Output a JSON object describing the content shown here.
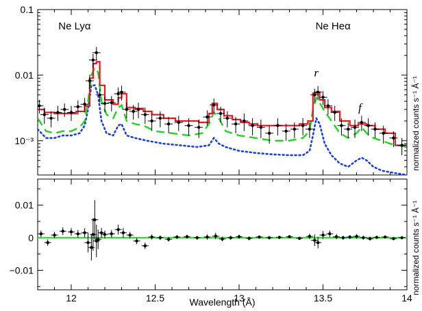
{
  "chart_data": [
    {
      "panel": "top",
      "type": "line",
      "yscale": "log",
      "xlim": [
        11.8,
        14.0
      ],
      "ylim": [
        0.0003,
        0.1
      ],
      "y_ticks": [
        0.001,
        0.01,
        0.1
      ],
      "y_tick_labels": [
        "10⁻³",
        "0.01",
        "0.1"
      ],
      "ylabel": "normalized counts s⁻¹ Å⁻¹",
      "annotations": [
        {
          "text": "Ne Lyα",
          "x": 12.02,
          "y": 0.05,
          "style": "normal"
        },
        {
          "text": "Ne Heα",
          "x": 13.56,
          "y": 0.05,
          "style": "normal"
        },
        {
          "text": "r",
          "x": 13.46,
          "y": 0.0095,
          "style": "italic"
        },
        {
          "text": "f",
          "x": 13.72,
          "y": 0.0028,
          "style": "italic"
        }
      ],
      "series": [
        {
          "style": "data-points",
          "color": "#000000",
          "x": [
            11.81,
            11.84,
            11.88,
            11.92,
            11.96,
            12.0,
            12.04,
            12.08,
            12.11,
            12.13,
            12.15,
            12.17,
            12.2,
            12.24,
            12.28,
            12.3,
            12.33,
            12.37,
            12.4,
            12.44,
            12.48,
            12.53,
            12.58,
            12.64,
            12.7,
            12.76,
            12.81,
            12.85,
            12.89,
            12.93,
            12.98,
            13.03,
            13.08,
            13.13,
            13.18,
            13.23,
            13.28,
            13.33,
            13.38,
            13.42,
            13.45,
            13.47,
            13.5,
            13.53,
            13.57,
            13.61,
            13.65,
            13.69,
            13.73,
            13.77,
            13.81,
            13.86,
            13.92,
            13.97
          ],
          "y": [
            0.0034,
            0.0025,
            0.0022,
            0.0027,
            0.003,
            0.0027,
            0.0033,
            0.0036,
            0.0082,
            0.017,
            0.022,
            0.005,
            0.0037,
            0.0038,
            0.0052,
            0.0055,
            0.003,
            0.0028,
            0.003,
            0.0025,
            0.002,
            0.0022,
            0.0018,
            0.0019,
            0.0017,
            0.0016,
            0.0023,
            0.0035,
            0.0026,
            0.0022,
            0.0018,
            0.002,
            0.0017,
            0.0016,
            0.0013,
            0.0017,
            0.0014,
            0.0015,
            0.0017,
            0.0015,
            0.005,
            0.0055,
            0.0046,
            0.0034,
            0.0027,
            0.0017,
            0.0015,
            0.0016,
            0.0019,
            0.0017,
            0.0015,
            0.0013,
            0.0011,
            0.00085
          ],
          "yerr": [
            0.0008,
            0.0007,
            0.0006,
            0.0007,
            0.0007,
            0.0007,
            0.0008,
            0.0009,
            0.002,
            0.004,
            0.005,
            0.0012,
            0.001,
            0.001,
            0.0013,
            0.0014,
            0.0008,
            0.0007,
            0.0008,
            0.0007,
            0.0006,
            0.0006,
            0.0005,
            0.0005,
            0.0005,
            0.0005,
            0.0006,
            0.0009,
            0.0007,
            0.0006,
            0.0005,
            0.0006,
            0.0005,
            0.0005,
            0.0004,
            0.0005,
            0.0004,
            0.0004,
            0.0005,
            0.0004,
            0.0012,
            0.0013,
            0.0011,
            0.0009,
            0.0007,
            0.0005,
            0.0004,
            0.0005,
            0.0005,
            0.0005,
            0.0004,
            0.0004,
            0.0003,
            0.00025
          ]
        },
        {
          "style": "red-step",
          "color": "#e8141e",
          "x": [
            11.8,
            11.84,
            11.9,
            11.97,
            12.03,
            12.08,
            12.11,
            12.13,
            12.15,
            12.17,
            12.2,
            12.25,
            12.28,
            12.3,
            12.33,
            12.38,
            12.43,
            12.48,
            12.55,
            12.62,
            12.69,
            12.76,
            12.82,
            12.84,
            12.87,
            12.91,
            12.96,
            13.01,
            13.06,
            13.11,
            13.16,
            13.21,
            13.26,
            13.31,
            13.36,
            13.41,
            13.44,
            13.46,
            13.48,
            13.51,
            13.55,
            13.6,
            13.66,
            13.71,
            13.76,
            13.81,
            13.87,
            13.93,
            14.0
          ],
          "y": [
            0.003,
            0.0027,
            0.0026,
            0.0026,
            0.0028,
            0.0034,
            0.009,
            0.015,
            0.016,
            0.007,
            0.0042,
            0.0036,
            0.0045,
            0.0052,
            0.0032,
            0.0031,
            0.0028,
            0.0025,
            0.0022,
            0.002,
            0.002,
            0.0019,
            0.0026,
            0.0037,
            0.003,
            0.0024,
            0.0021,
            0.0019,
            0.0018,
            0.0017,
            0.0017,
            0.0017,
            0.0017,
            0.0017,
            0.0018,
            0.002,
            0.0053,
            0.0055,
            0.0042,
            0.0032,
            0.0028,
            0.002,
            0.0017,
            0.0018,
            0.0017,
            0.0015,
            0.0013,
            0.00085,
            0.00085
          ]
        },
        {
          "style": "green-dashed",
          "color": "#1fd41f",
          "x": [
            11.8,
            11.85,
            11.9,
            11.95,
            12.0,
            12.05,
            12.08,
            12.1,
            12.12,
            12.14,
            12.16,
            12.18,
            12.21,
            12.25,
            12.28,
            12.3,
            12.33,
            12.38,
            12.43,
            12.5,
            12.6,
            12.7,
            12.78,
            12.82,
            12.85,
            12.88,
            12.92,
            13.0,
            13.1,
            13.2,
            13.3,
            13.38,
            13.42,
            13.44,
            13.46,
            13.48,
            13.51,
            13.55,
            13.6,
            13.65,
            13.7,
            13.73,
            13.76,
            13.8,
            13.85,
            13.9,
            14.0
          ],
          "y": [
            0.0022,
            0.0014,
            0.0013,
            0.0014,
            0.0014,
            0.0016,
            0.002,
            0.004,
            0.01,
            0.013,
            0.011,
            0.004,
            0.0025,
            0.0022,
            0.0032,
            0.0035,
            0.002,
            0.0018,
            0.0017,
            0.0014,
            0.0013,
            0.0012,
            0.0013,
            0.0018,
            0.0027,
            0.0022,
            0.0014,
            0.0012,
            0.0011,
            0.001,
            0.001,
            0.0011,
            0.0014,
            0.003,
            0.0045,
            0.0038,
            0.0028,
            0.002,
            0.0013,
            0.0011,
            0.0013,
            0.0016,
            0.0013,
            0.0011,
            0.001,
            0.0009,
            0.0008
          ]
        },
        {
          "style": "blue-dotted",
          "color": "#1a3fe0",
          "x": [
            11.8,
            11.85,
            11.9,
            11.95,
            12.0,
            12.05,
            12.08,
            12.1,
            12.12,
            12.14,
            12.16,
            12.18,
            12.21,
            12.25,
            12.28,
            12.3,
            12.33,
            12.38,
            12.45,
            12.55,
            12.65,
            12.75,
            12.82,
            12.85,
            12.88,
            12.92,
            13.0,
            13.1,
            13.2,
            13.3,
            13.38,
            13.42,
            13.44,
            13.46,
            13.48,
            13.51,
            13.55,
            13.6,
            13.65,
            13.7,
            13.73,
            13.76,
            13.8,
            13.85,
            13.9,
            14.0
          ],
          "y": [
            0.0015,
            0.0011,
            0.0011,
            0.0012,
            0.0012,
            0.0013,
            0.0017,
            0.003,
            0.007,
            0.007,
            0.005,
            0.002,
            0.0013,
            0.0012,
            0.0017,
            0.0018,
            0.0012,
            0.0011,
            0.001,
            0.0009,
            0.00085,
            0.0008,
            0.00085,
            0.0011,
            0.0009,
            0.0008,
            0.0007,
            0.00065,
            0.00062,
            0.0006,
            0.0006,
            0.0007,
            0.0012,
            0.0022,
            0.0018,
            0.0009,
            0.0006,
            0.00045,
            0.0004,
            0.0005,
            0.00055,
            0.0005,
            0.0004,
            0.00035,
            0.00033,
            0.0003
          ]
        }
      ]
    },
    {
      "panel": "bottom",
      "type": "scatter",
      "yscale": "linear",
      "xlim": [
        11.8,
        14.0
      ],
      "ylim": [
        -0.016,
        0.018
      ],
      "y_ticks": [
        -0.01,
        0,
        0.01
      ],
      "y_tick_labels": [
        "−0.01",
        "0",
        "0.01"
      ],
      "ylabel": "normalized counts s⁻¹ Å⁻¹",
      "xlabel": "Wavelength (Å)",
      "x_ticks": [
        12,
        12.5,
        13,
        13.5,
        14
      ],
      "x_tick_labels": [
        "12",
        "12.5",
        "13",
        "13.5",
        "14"
      ],
      "zero_line_color": "#1fd41f",
      "series": [
        {
          "style": "data-points",
          "color": "#000000",
          "x": [
            11.82,
            11.86,
            11.9,
            11.95,
            12.0,
            12.04,
            12.08,
            12.1,
            12.12,
            12.13,
            12.14,
            12.15,
            12.16,
            12.18,
            12.2,
            12.24,
            12.28,
            12.31,
            12.35,
            12.39,
            12.44,
            12.48,
            12.53,
            12.58,
            12.63,
            12.69,
            12.75,
            12.81,
            12.86,
            12.9,
            12.95,
            13.0,
            13.06,
            13.12,
            13.18,
            13.24,
            13.3,
            13.36,
            13.42,
            13.45,
            13.47,
            13.5,
            13.54,
            13.58,
            13.62,
            13.66,
            13.7,
            13.74,
            13.78,
            13.82,
            13.87,
            13.92,
            13.97
          ],
          "y": [
            0.0012,
            -0.0015,
            0.0008,
            0.002,
            0.0018,
            0.0012,
            0.0015,
            -0.0015,
            -0.003,
            0.001,
            0.0055,
            -0.001,
            -0.0005,
            0.0015,
            0.001,
            0.0012,
            0.0025,
            0.0015,
            0.0008,
            -0.001,
            -0.0025,
            0.0002,
            0.0,
            -0.0005,
            0.0002,
            0.0003,
            0.0,
            0.0002,
            0.0005,
            -0.0004,
            0.0,
            0.0003,
            -0.0002,
            0.0002,
            0.0,
            0.0001,
            0.0003,
            -0.0002,
            0.0004,
            -0.0008,
            -0.0015,
            0.0008,
            0.0012,
            0.0003,
            0.0,
            0.0002,
            0.0004,
            0.0,
            -0.0003,
            0.0001,
            0.0002,
            -0.0003,
            0.0
          ],
          "yerr": [
            0.001,
            0.001,
            0.001,
            0.0012,
            0.0012,
            0.0012,
            0.0014,
            0.003,
            0.004,
            0.005,
            0.006,
            0.005,
            0.003,
            0.0015,
            0.0012,
            0.0012,
            0.0015,
            0.0015,
            0.001,
            0.001,
            0.001,
            0.0008,
            0.0007,
            0.0007,
            0.0006,
            0.0006,
            0.0006,
            0.0008,
            0.001,
            0.0007,
            0.0006,
            0.0006,
            0.0006,
            0.0005,
            0.0005,
            0.0005,
            0.0005,
            0.0005,
            0.0008,
            0.0018,
            0.0018,
            0.0012,
            0.001,
            0.0008,
            0.0006,
            0.0006,
            0.0007,
            0.0006,
            0.0006,
            0.0005,
            0.0005,
            0.0005,
            0.0004
          ]
        }
      ]
    }
  ]
}
